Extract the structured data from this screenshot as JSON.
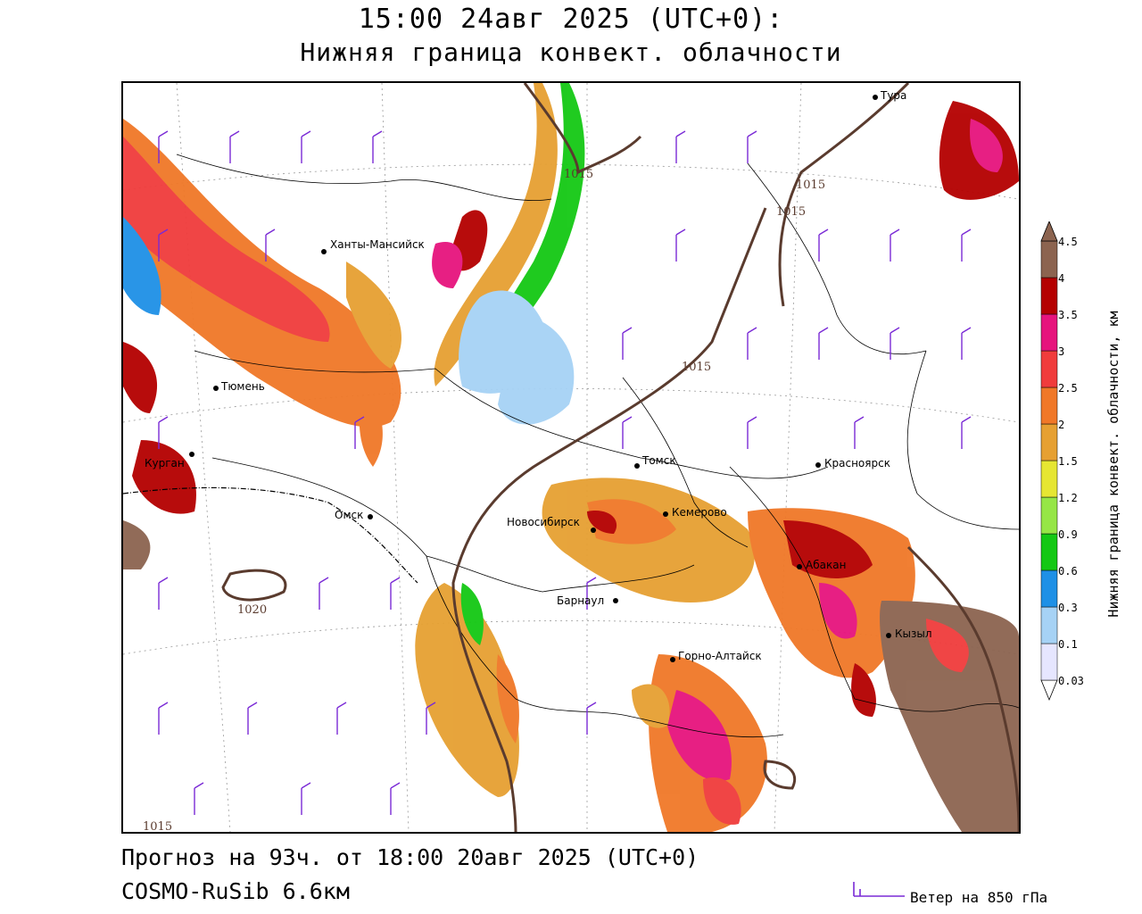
{
  "title_line1": "15:00 24авг 2025 (UTC+0):",
  "title_line2": "Нижняя граница конвект. облачности",
  "footer_line1": "Прогноз на 93ч. от 18:00 20авг 2025 (UTC+0)",
  "footer_line2": "COSMO-RuSib 6.6км",
  "wind_legend": "Ветер на 850 гПа",
  "colorbar": {
    "title": "Нижняя граница конвект. облачности, км",
    "ticks": [
      "0.03",
      "0.1",
      "0.3",
      "0.6",
      "0.9",
      "1.2",
      "1.5",
      "2",
      "2.5",
      "3",
      "3.5",
      "4",
      "4.5"
    ],
    "colors": [
      "#ffffff",
      "#e6e6ff",
      "#a6d2f5",
      "#1e90e6",
      "#14c814",
      "#96e646",
      "#e6e632",
      "#e6a032",
      "#f07828",
      "#f03c3c",
      "#e6147d",
      "#b40000",
      "#8c6450",
      "#8c6450"
    ]
  },
  "cities": [
    {
      "name": "Тура"
    },
    {
      "name": "Ханты-Мансийск"
    },
    {
      "name": "Тюмень"
    },
    {
      "name": "Курган"
    },
    {
      "name": "Омск"
    },
    {
      "name": "Томск"
    },
    {
      "name": "Красноярск"
    },
    {
      "name": "Новосибирск"
    },
    {
      "name": "Кемерово"
    },
    {
      "name": "Абакан"
    },
    {
      "name": "Барнаул"
    },
    {
      "name": "Горно-Алтайск"
    },
    {
      "name": "Кызыл"
    }
  ],
  "isobars": [
    {
      "label": "1015"
    },
    {
      "label": "1015"
    },
    {
      "label": "1015"
    },
    {
      "label": "1015"
    },
    {
      "label": "1020"
    },
    {
      "label": "1015"
    }
  ]
}
